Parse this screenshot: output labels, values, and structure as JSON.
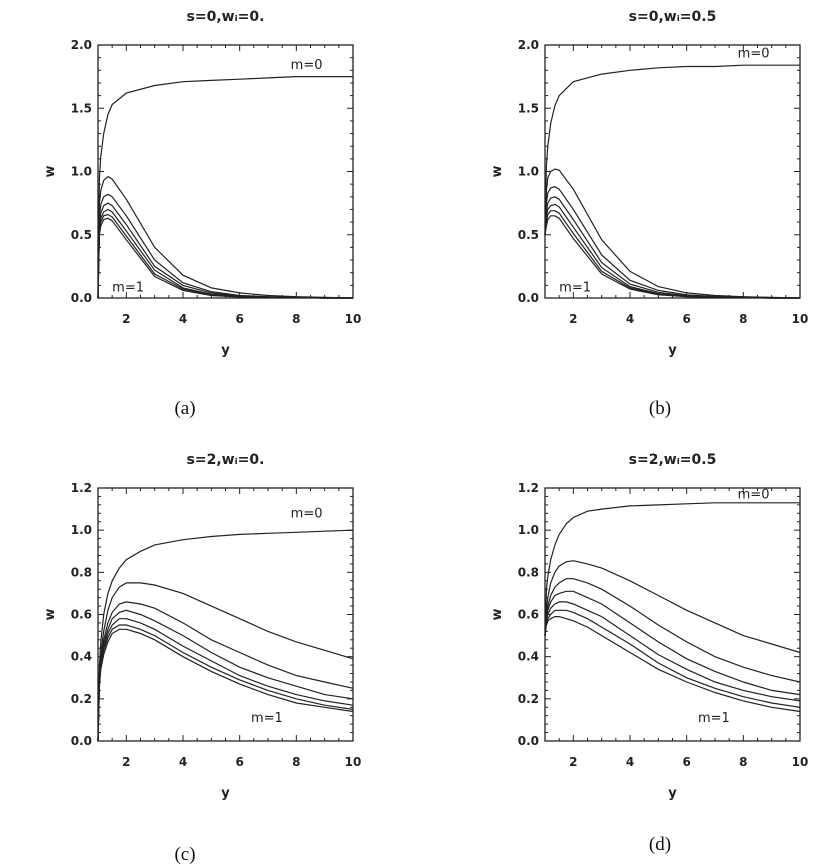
{
  "chart_data": [
    {
      "type": "line",
      "title": "s=0,wᵢ=0.",
      "xlabel": "y",
      "ylabel": "w",
      "xlim": [
        1,
        10
      ],
      "ylim": [
        0,
        2.0
      ],
      "xticks": [
        2,
        4,
        6,
        8,
        10
      ],
      "xtick_labels": [
        "2",
        "4",
        "6",
        "8",
        "10"
      ],
      "yticks": [
        0.0,
        0.5,
        1.0,
        1.5,
        2.0
      ],
      "ytick_labels": [
        "0.0",
        "0.5",
        "1.0",
        "1.5",
        "2.0"
      ],
      "caption": "(a)",
      "annotations": [
        {
          "text": "m=0",
          "x": 7.8,
          "y": 1.81
        },
        {
          "text": "m=1",
          "x": 1.5,
          "y": 0.05
        }
      ],
      "x": [
        1.0,
        1.05,
        1.1,
        1.2,
        1.35,
        1.5,
        2.0,
        3.0,
        4.0,
        5.0,
        6.0,
        7.0,
        8.0,
        9.0,
        10.0
      ],
      "series": [
        {
          "values": [
            0.0,
            0.95,
            1.12,
            1.3,
            1.45,
            1.53,
            1.62,
            1.68,
            1.71,
            1.72,
            1.73,
            1.74,
            1.75,
            1.75,
            1.75
          ]
        },
        {
          "values": [
            0.0,
            0.75,
            0.85,
            0.93,
            0.96,
            0.94,
            0.78,
            0.4,
            0.18,
            0.08,
            0.04,
            0.02,
            0.01,
            0.005,
            0.0
          ]
        },
        {
          "values": [
            0.0,
            0.65,
            0.74,
            0.8,
            0.82,
            0.8,
            0.65,
            0.3,
            0.12,
            0.05,
            0.02,
            0.01,
            0.005,
            0.0,
            0.0
          ]
        },
        {
          "values": [
            0.0,
            0.58,
            0.67,
            0.73,
            0.75,
            0.73,
            0.58,
            0.25,
            0.1,
            0.04,
            0.015,
            0.008,
            0.004,
            0.0,
            0.0
          ]
        },
        {
          "values": [
            0.0,
            0.55,
            0.63,
            0.68,
            0.7,
            0.68,
            0.53,
            0.22,
            0.08,
            0.03,
            0.012,
            0.006,
            0.003,
            0.0,
            0.0
          ]
        },
        {
          "values": [
            0.0,
            0.52,
            0.6,
            0.65,
            0.66,
            0.64,
            0.49,
            0.19,
            0.07,
            0.025,
            0.01,
            0.005,
            0.002,
            0.0,
            0.0
          ]
        },
        {
          "values": [
            0.0,
            0.5,
            0.57,
            0.62,
            0.63,
            0.61,
            0.46,
            0.17,
            0.06,
            0.02,
            0.008,
            0.004,
            0.002,
            0.0,
            0.0
          ]
        }
      ]
    },
    {
      "type": "line",
      "title": "s=0,wᵢ=0.5",
      "xlabel": "y",
      "ylabel": "w",
      "xlim": [
        1,
        10
      ],
      "ylim": [
        0,
        2.0
      ],
      "xticks": [
        2,
        4,
        6,
        8,
        10
      ],
      "xtick_labels": [
        "2",
        "4",
        "6",
        "8",
        "10"
      ],
      "yticks": [
        0.0,
        0.5,
        1.0,
        1.5,
        2.0
      ],
      "ytick_labels": [
        "0.0",
        "0.5",
        "1.0",
        "1.5",
        "2.0"
      ],
      "caption": "(b)",
      "annotations": [
        {
          "text": "m=0",
          "x": 7.8,
          "y": 1.9
        },
        {
          "text": "m=1",
          "x": 1.5,
          "y": 0.05
        }
      ],
      "x": [
        1.0,
        1.05,
        1.1,
        1.2,
        1.35,
        1.5,
        2.0,
        3.0,
        4.0,
        5.0,
        6.0,
        7.0,
        8.0,
        9.0,
        10.0
      ],
      "series": [
        {
          "values": [
            0.5,
            1.05,
            1.2,
            1.38,
            1.52,
            1.6,
            1.71,
            1.77,
            1.8,
            1.82,
            1.83,
            1.83,
            1.84,
            1.84,
            1.84
          ]
        },
        {
          "values": [
            0.5,
            0.85,
            0.95,
            1.0,
            1.02,
            1.01,
            0.86,
            0.46,
            0.21,
            0.09,
            0.04,
            0.02,
            0.01,
            0.005,
            0.0
          ]
        },
        {
          "values": [
            0.5,
            0.75,
            0.83,
            0.87,
            0.88,
            0.86,
            0.7,
            0.34,
            0.14,
            0.06,
            0.025,
            0.012,
            0.006,
            0.0,
            0.0
          ]
        },
        {
          "values": [
            0.5,
            0.68,
            0.75,
            0.79,
            0.8,
            0.78,
            0.62,
            0.28,
            0.11,
            0.045,
            0.018,
            0.009,
            0.004,
            0.0,
            0.0
          ]
        },
        {
          "values": [
            0.5,
            0.64,
            0.7,
            0.73,
            0.74,
            0.72,
            0.56,
            0.24,
            0.09,
            0.035,
            0.014,
            0.007,
            0.003,
            0.0,
            0.0
          ]
        },
        {
          "values": [
            0.5,
            0.6,
            0.66,
            0.69,
            0.69,
            0.67,
            0.51,
            0.21,
            0.08,
            0.03,
            0.012,
            0.006,
            0.003,
            0.0,
            0.0
          ]
        },
        {
          "values": [
            0.5,
            0.57,
            0.62,
            0.65,
            0.65,
            0.63,
            0.47,
            0.19,
            0.07,
            0.025,
            0.01,
            0.005,
            0.002,
            0.0,
            0.0
          ]
        }
      ]
    },
    {
      "type": "line",
      "title": "s=2,wᵢ=0.",
      "xlabel": "y",
      "ylabel": "w",
      "xlim": [
        1,
        10
      ],
      "ylim": [
        0,
        1.2
      ],
      "xticks": [
        2,
        4,
        6,
        8,
        10
      ],
      "xtick_labels": [
        "2",
        "4",
        "6",
        "8",
        "10"
      ],
      "yticks": [
        0.0,
        0.2,
        0.4,
        0.6,
        0.8,
        1.0,
        1.2
      ],
      "ytick_labels": [
        "0.0",
        "0.2",
        "0.4",
        "0.6",
        "0.8",
        "1.0",
        "1.2"
      ],
      "caption": "(c)",
      "annotations": [
        {
          "text": "m=0",
          "x": 7.8,
          "y": 1.06
        },
        {
          "text": "m=1",
          "x": 6.4,
          "y": 0.09
        }
      ],
      "x": [
        1.0,
        1.05,
        1.1,
        1.2,
        1.35,
        1.5,
        1.75,
        2.0,
        2.5,
        3.0,
        4.0,
        5.0,
        6.0,
        7.0,
        8.0,
        9.0,
        10.0
      ],
      "series": [
        {
          "values": [
            0.0,
            0.35,
            0.47,
            0.6,
            0.7,
            0.76,
            0.82,
            0.86,
            0.9,
            0.93,
            0.955,
            0.97,
            0.98,
            0.985,
            0.99,
            0.995,
            1.0
          ]
        },
        {
          "values": [
            0.0,
            0.32,
            0.42,
            0.52,
            0.62,
            0.68,
            0.73,
            0.75,
            0.75,
            0.74,
            0.7,
            0.64,
            0.58,
            0.52,
            0.47,
            0.43,
            0.39
          ]
        },
        {
          "values": [
            0.0,
            0.3,
            0.39,
            0.48,
            0.56,
            0.61,
            0.65,
            0.66,
            0.65,
            0.63,
            0.56,
            0.48,
            0.42,
            0.36,
            0.31,
            0.28,
            0.25
          ]
        },
        {
          "values": [
            0.0,
            0.29,
            0.37,
            0.46,
            0.53,
            0.58,
            0.61,
            0.62,
            0.6,
            0.57,
            0.5,
            0.42,
            0.35,
            0.3,
            0.26,
            0.22,
            0.2
          ]
        },
        {
          "values": [
            0.0,
            0.28,
            0.36,
            0.44,
            0.51,
            0.55,
            0.58,
            0.58,
            0.56,
            0.53,
            0.45,
            0.38,
            0.31,
            0.26,
            0.22,
            0.19,
            0.17
          ]
        },
        {
          "values": [
            0.0,
            0.27,
            0.35,
            0.43,
            0.49,
            0.53,
            0.55,
            0.55,
            0.53,
            0.5,
            0.42,
            0.35,
            0.29,
            0.24,
            0.2,
            0.17,
            0.15
          ]
        },
        {
          "values": [
            0.0,
            0.26,
            0.34,
            0.41,
            0.47,
            0.51,
            0.53,
            0.53,
            0.51,
            0.48,
            0.4,
            0.33,
            0.27,
            0.22,
            0.18,
            0.16,
            0.14
          ]
        }
      ]
    },
    {
      "type": "line",
      "title": "s=2,wᵢ=0.5",
      "xlabel": "y",
      "ylabel": "w",
      "xlim": [
        1,
        10
      ],
      "ylim": [
        0,
        1.2
      ],
      "xticks": [
        2,
        4,
        6,
        8,
        10
      ],
      "xtick_labels": [
        "2",
        "4",
        "6",
        "8",
        "10"
      ],
      "yticks": [
        0.0,
        0.2,
        0.4,
        0.6,
        0.8,
        1.0,
        1.2
      ],
      "ytick_labels": [
        "0.0",
        "0.2",
        "0.4",
        "0.6",
        "0.8",
        "1.0",
        "1.2"
      ],
      "caption": "(d)",
      "annotations": [
        {
          "text": "m=0",
          "x": 7.8,
          "y": 1.15
        },
        {
          "text": "m=1",
          "x": 6.4,
          "y": 0.09
        }
      ],
      "x": [
        1.0,
        1.05,
        1.1,
        1.2,
        1.35,
        1.5,
        1.75,
        2.0,
        2.5,
        3.0,
        4.0,
        5.0,
        6.0,
        7.0,
        8.0,
        9.0,
        10.0
      ],
      "series": [
        {
          "values": [
            0.5,
            0.72,
            0.78,
            0.86,
            0.93,
            0.98,
            1.03,
            1.06,
            1.09,
            1.1,
            1.115,
            1.12,
            1.125,
            1.13,
            1.13,
            1.13,
            1.13
          ]
        },
        {
          "values": [
            0.5,
            0.62,
            0.68,
            0.75,
            0.8,
            0.83,
            0.85,
            0.855,
            0.84,
            0.82,
            0.76,
            0.69,
            0.62,
            0.56,
            0.5,
            0.46,
            0.42
          ]
        },
        {
          "values": [
            0.5,
            0.6,
            0.64,
            0.69,
            0.73,
            0.75,
            0.77,
            0.77,
            0.75,
            0.72,
            0.64,
            0.55,
            0.47,
            0.4,
            0.35,
            0.31,
            0.28
          ]
        },
        {
          "values": [
            0.5,
            0.58,
            0.62,
            0.66,
            0.69,
            0.7,
            0.71,
            0.71,
            0.68,
            0.65,
            0.56,
            0.47,
            0.39,
            0.33,
            0.28,
            0.24,
            0.22
          ]
        },
        {
          "values": [
            0.5,
            0.57,
            0.6,
            0.63,
            0.65,
            0.66,
            0.66,
            0.65,
            0.62,
            0.59,
            0.5,
            0.41,
            0.34,
            0.28,
            0.24,
            0.21,
            0.19
          ]
        },
        {
          "values": [
            0.5,
            0.56,
            0.58,
            0.6,
            0.62,
            0.62,
            0.62,
            0.61,
            0.58,
            0.54,
            0.46,
            0.37,
            0.3,
            0.25,
            0.21,
            0.18,
            0.16
          ]
        },
        {
          "values": [
            0.5,
            0.55,
            0.57,
            0.58,
            0.59,
            0.59,
            0.58,
            0.57,
            0.54,
            0.5,
            0.42,
            0.34,
            0.28,
            0.23,
            0.19,
            0.16,
            0.14
          ]
        }
      ]
    }
  ]
}
